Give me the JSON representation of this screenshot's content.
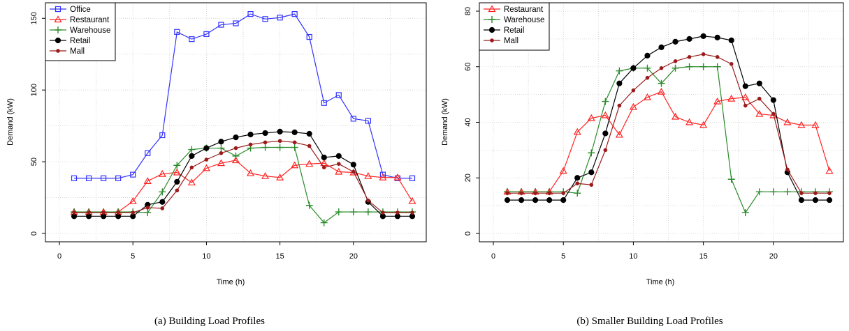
{
  "chart_data": [
    {
      "type": "line",
      "caption": "(a) Building Load Profiles",
      "xlabel": "Time (h)",
      "ylabel": "Demand (kW)",
      "xlim": [
        0,
        24
      ],
      "ylim": [
        0,
        155
      ],
      "xticks": [
        0,
        5,
        10,
        15,
        20
      ],
      "yticks": [
        0,
        50,
        100,
        150
      ],
      "grid": true,
      "legend_position": "top-left",
      "x": [
        1,
        2,
        3,
        4,
        5,
        6,
        7,
        8,
        9,
        10,
        11,
        12,
        13,
        14,
        15,
        16,
        17,
        18,
        19,
        20,
        21,
        22,
        23,
        24
      ],
      "series": [
        {
          "name": "Office",
          "color": "#3333ff",
          "marker": "square",
          "values": [
            38.5,
            38.5,
            38.5,
            38.5,
            41,
            56,
            68.5,
            140.5,
            135.5,
            139,
            145.5,
            146.5,
            153,
            149.5,
            150.5,
            153,
            137,
            91,
            96.5,
            80,
            78.5,
            41,
            38.5,
            38.5
          ]
        },
        {
          "name": "Restaurant",
          "color": "#ff2222",
          "marker": "triangle",
          "values": [
            15,
            15,
            15,
            15,
            22.5,
            36.5,
            41.5,
            42.5,
            35.5,
            45.5,
            49,
            51,
            42,
            40,
            39,
            47.5,
            48.5,
            49,
            43,
            42.5,
            40,
            39,
            39,
            22.5
          ]
        },
        {
          "name": "Warehouse",
          "color": "#2a8a2a",
          "marker": "plus",
          "values": [
            15,
            15,
            15,
            15,
            15,
            14.5,
            29,
            47.5,
            58.5,
            59.5,
            59.5,
            54,
            59.5,
            60,
            60,
            60,
            19.5,
            7.5,
            15,
            15,
            15,
            15,
            15,
            15
          ]
        },
        {
          "name": "Retail",
          "color": "#000000",
          "marker": "circle",
          "values": [
            12,
            12,
            12,
            12,
            12,
            20,
            22,
            36,
            54,
            59.5,
            64,
            67,
            69,
            70,
            71,
            70.5,
            69.5,
            53,
            54,
            48,
            22,
            12,
            12,
            12
          ]
        },
        {
          "name": "Mall",
          "color": "#9b1b1b",
          "marker": "dot",
          "values": [
            14.5,
            14.5,
            14.5,
            14.5,
            14.5,
            18,
            17.5,
            30,
            46,
            51.5,
            56,
            59.5,
            62,
            63.5,
            64.5,
            63.5,
            61,
            46,
            48.5,
            43,
            23,
            14.5,
            14.5,
            14.5
          ]
        }
      ]
    },
    {
      "type": "line",
      "caption": "(b) Smaller Building Load Profiles",
      "xlabel": "Time (h)",
      "ylabel": "Demand (kW)",
      "xlim": [
        0,
        24
      ],
      "ylim": [
        0,
        80
      ],
      "xticks": [
        0,
        5,
        10,
        15,
        20
      ],
      "yticks": [
        0,
        20,
        40,
        60,
        80
      ],
      "grid": true,
      "legend_position": "top-left",
      "x": [
        1,
        2,
        3,
        4,
        5,
        6,
        7,
        8,
        9,
        10,
        11,
        12,
        13,
        14,
        15,
        16,
        17,
        18,
        19,
        20,
        21,
        22,
        23,
        24
      ],
      "series": [
        {
          "name": "Restaurant",
          "color": "#ff2222",
          "marker": "triangle",
          "values": [
            15,
            15,
            15,
            15,
            22.5,
            36.5,
            41.5,
            42.5,
            35.5,
            45.5,
            49,
            51,
            42,
            40,
            39,
            47.5,
            48.5,
            49,
            43,
            42.5,
            40,
            39,
            39,
            22.5
          ]
        },
        {
          "name": "Warehouse",
          "color": "#2a8a2a",
          "marker": "plus",
          "values": [
            15,
            15,
            15,
            15,
            15,
            14.5,
            29,
            47.5,
            58.5,
            59.5,
            59.5,
            54,
            59.5,
            60,
            60,
            60,
            19.5,
            7.5,
            15,
            15,
            15,
            15,
            15,
            15
          ]
        },
        {
          "name": "Retail",
          "color": "#000000",
          "marker": "circle",
          "values": [
            12,
            12,
            12,
            12,
            12,
            20,
            22,
            36,
            54,
            59.5,
            64,
            67,
            69,
            70,
            71,
            70.5,
            69.5,
            53,
            54,
            48,
            22,
            12,
            12,
            12
          ]
        },
        {
          "name": "Mall",
          "color": "#9b1b1b",
          "marker": "dot",
          "values": [
            14.5,
            14.5,
            14.5,
            14.5,
            14.5,
            18,
            17.5,
            30,
            46,
            51.5,
            56,
            59.5,
            62,
            63.5,
            64.5,
            63.5,
            61,
            46,
            48.5,
            43,
            23,
            14.5,
            14.5,
            14.5
          ]
        }
      ]
    }
  ]
}
